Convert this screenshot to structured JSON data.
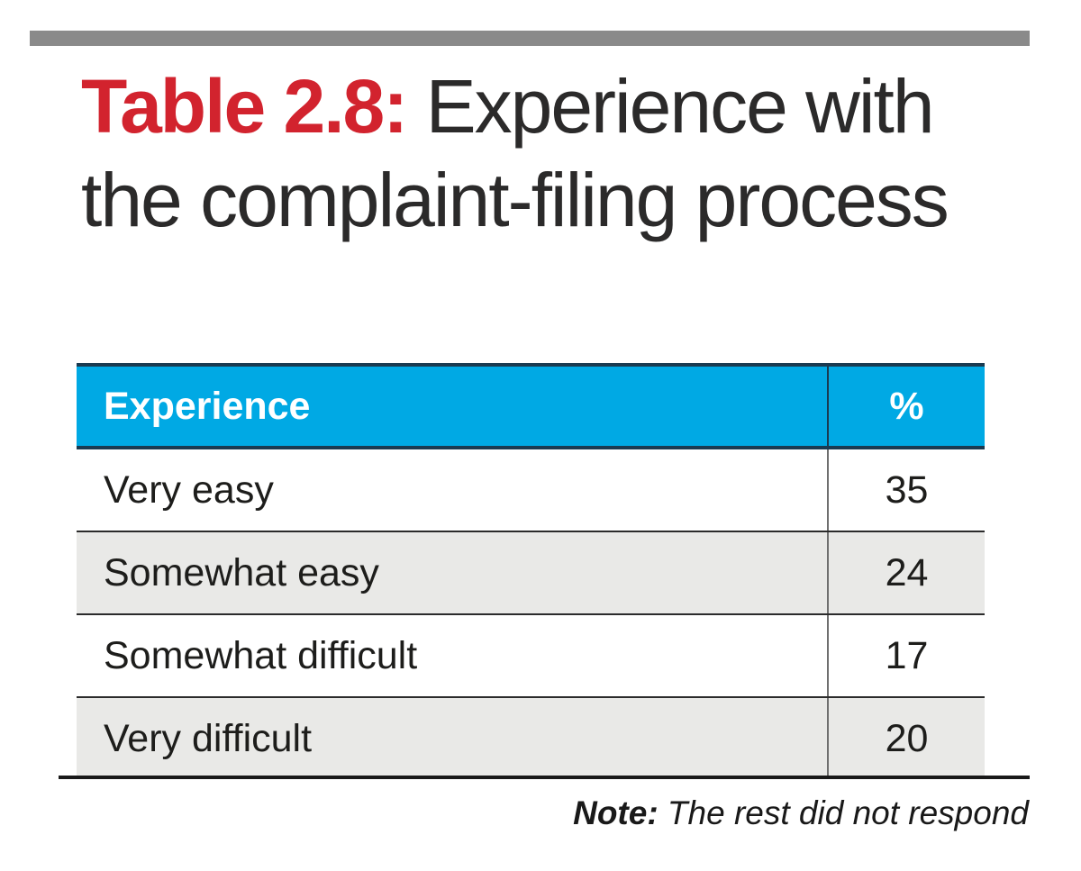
{
  "top_bar": {
    "color": "#8a8a8a"
  },
  "title": {
    "label": "Table 2.8:",
    "label_color": "#d2232e",
    "text": " Experience with the complaint-filing process"
  },
  "table": {
    "header": {
      "experience": "Experience",
      "percent": "%"
    },
    "header_bg": "#00a9e4",
    "header_text_color": "#ffffff",
    "border_color": "#1a3a50",
    "alt_row_bg": "#e9e9e7",
    "rows": [
      {
        "label": "Very easy",
        "value": "35"
      },
      {
        "label": "Somewhat easy",
        "value": "24"
      },
      {
        "label": "Somewhat difficult",
        "value": "17"
      },
      {
        "label": "Very difficult",
        "value": "20"
      }
    ]
  },
  "note": {
    "label": "Note:",
    "text": " The rest did not respond"
  },
  "chart_data": {
    "type": "table",
    "title": "Table 2.8: Experience with the complaint-filing process",
    "columns": [
      "Experience",
      "%"
    ],
    "categories": [
      "Very easy",
      "Somewhat easy",
      "Somewhat difficult",
      "Very difficult"
    ],
    "values": [
      35,
      24,
      17,
      20
    ],
    "note": "The rest did not respond"
  }
}
